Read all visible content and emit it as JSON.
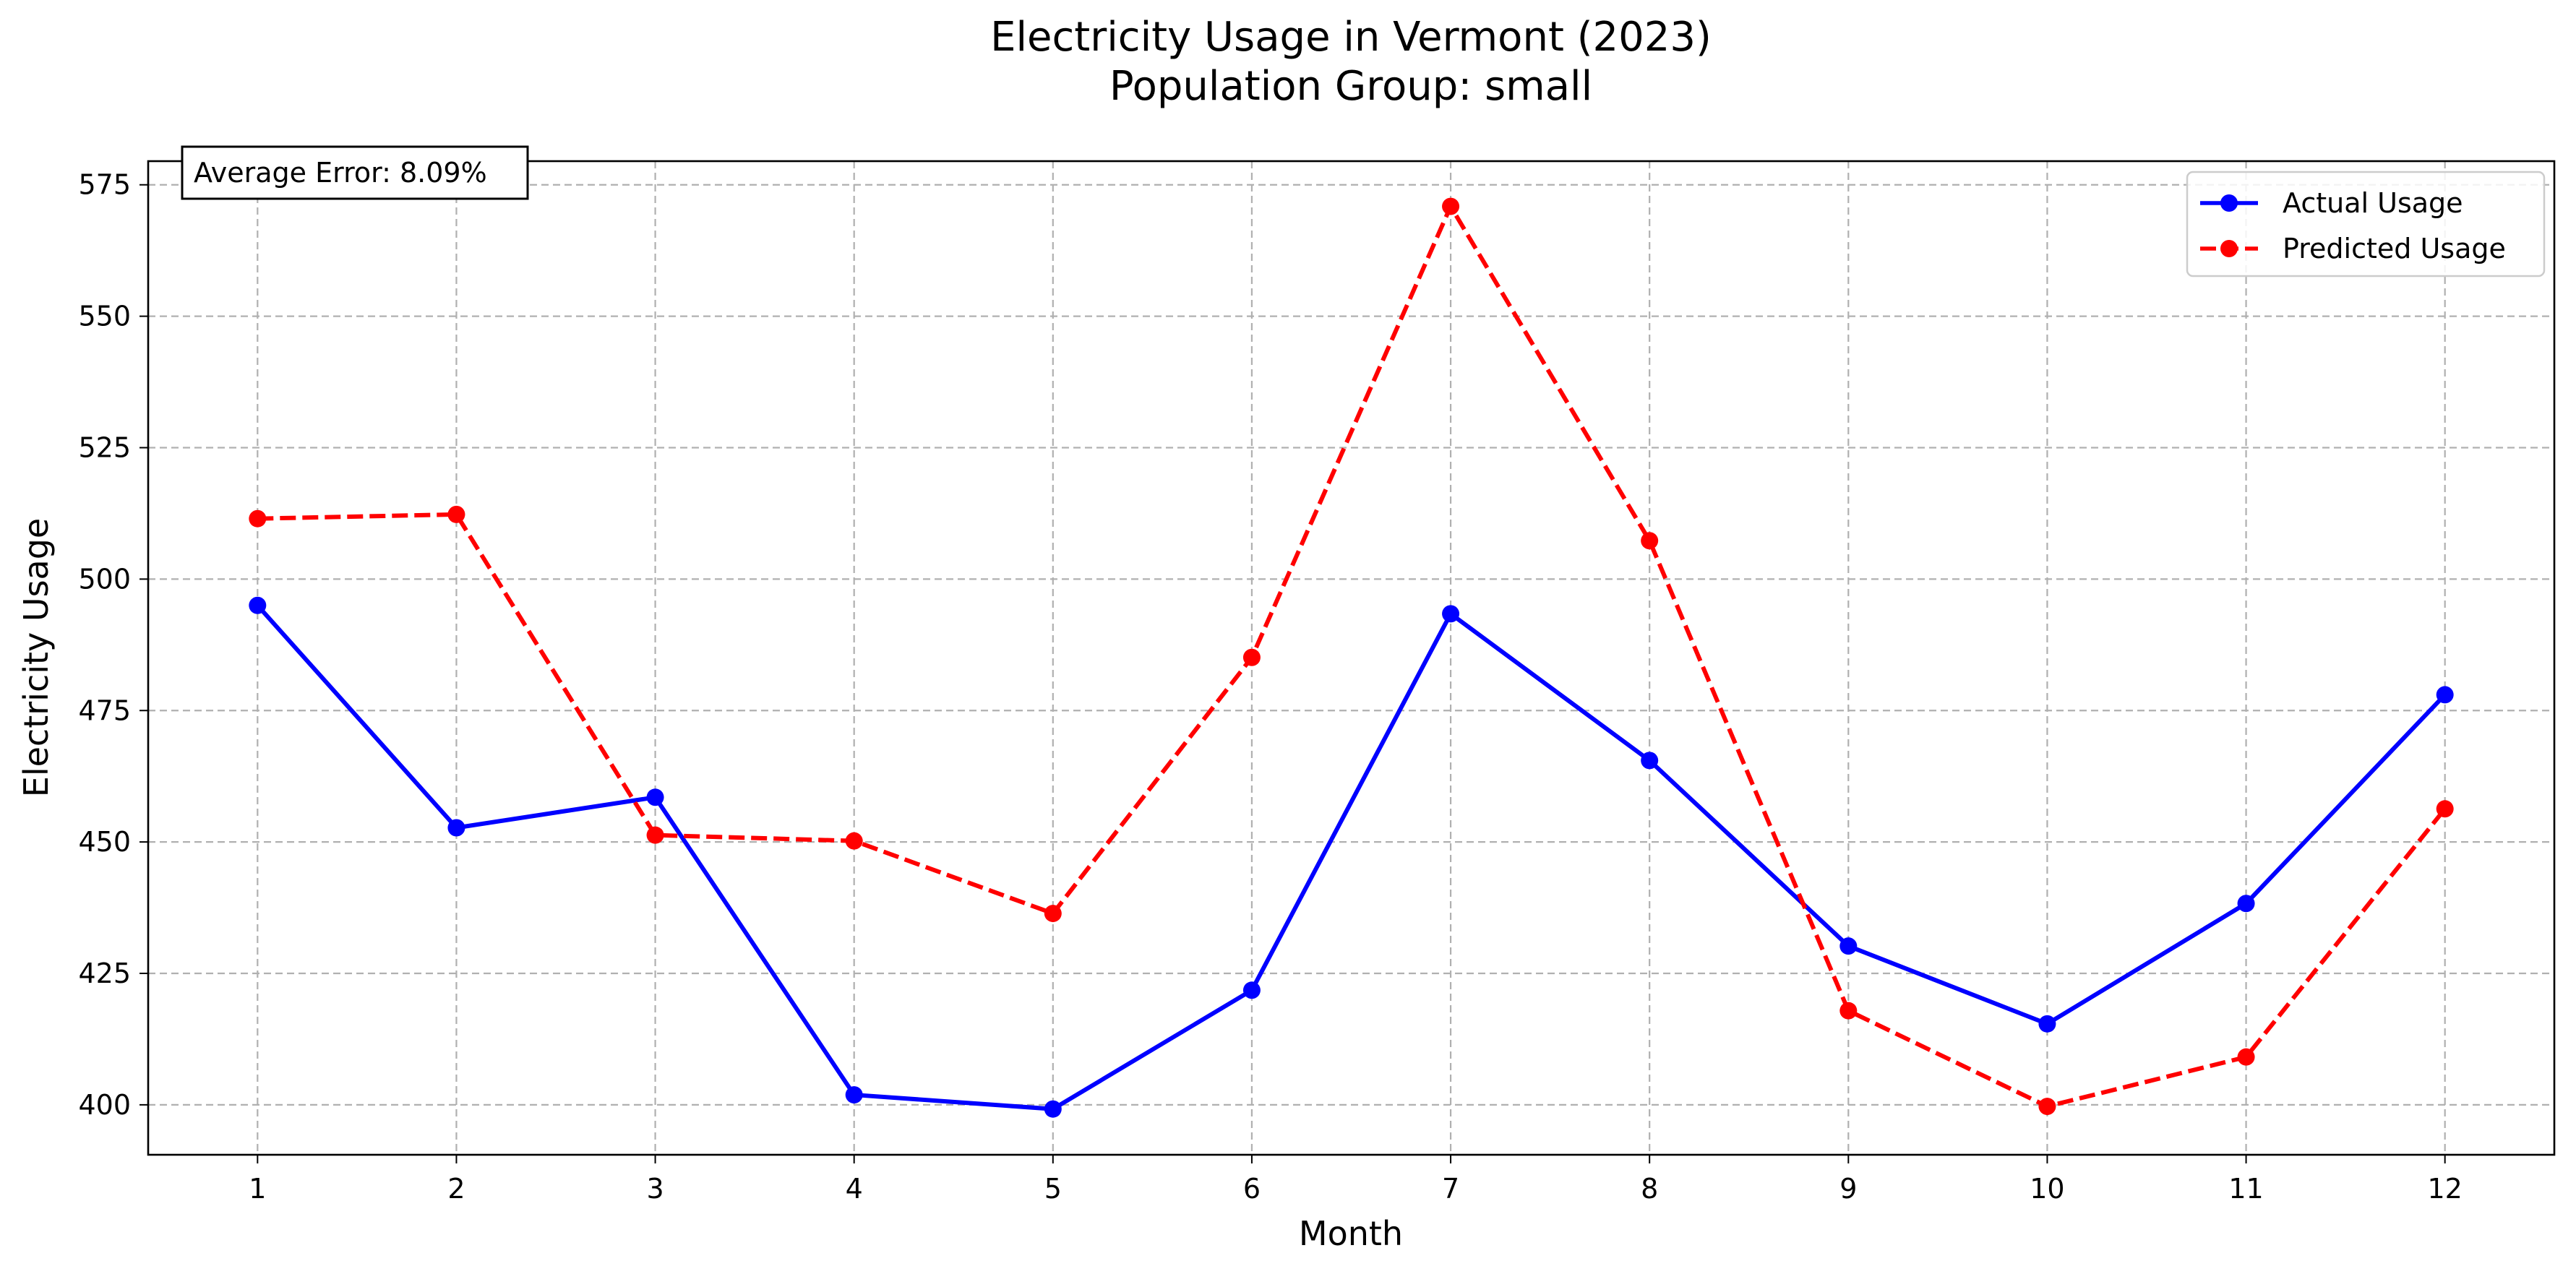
{
  "chart_data": {
    "type": "line",
    "title": "Electricity Usage in Vermont (2023)",
    "subtitle": "Population Group: small",
    "xlabel": "Month",
    "ylabel": "Electricity Usage",
    "x": [
      1,
      2,
      3,
      4,
      5,
      6,
      7,
      8,
      9,
      10,
      11,
      12
    ],
    "x_tick_labels": [
      "1",
      "2",
      "3",
      "4",
      "5",
      "6",
      "7",
      "8",
      "9",
      "10",
      "11",
      "12"
    ],
    "xlim": [
      0.45,
      12.55
    ],
    "ylim": [
      390.5,
      579.5
    ],
    "y_ticks": [
      400,
      425,
      450,
      475,
      500,
      525,
      550,
      575
    ],
    "y_tick_labels": [
      "400",
      "425",
      "450",
      "475",
      "500",
      "525",
      "550",
      "575"
    ],
    "grid": true,
    "legend_position": "top-right",
    "annotation": "Average Error: 8.09%",
    "series": [
      {
        "name": "Actual Usage",
        "color": "#0000ff",
        "style": "solid",
        "marker": "circle",
        "values": [
          495.0,
          452.7,
          458.5,
          401.9,
          399.2,
          421.8,
          493.4,
          465.5,
          430.2,
          415.4,
          438.3,
          478.0
        ]
      },
      {
        "name": "Predicted Usage",
        "color": "#ff0000",
        "style": "dashed",
        "marker": "circle",
        "values": [
          511.5,
          512.3,
          451.3,
          450.2,
          436.4,
          485.1,
          570.9,
          507.3,
          417.9,
          399.7,
          409.1,
          456.3
        ]
      }
    ]
  }
}
